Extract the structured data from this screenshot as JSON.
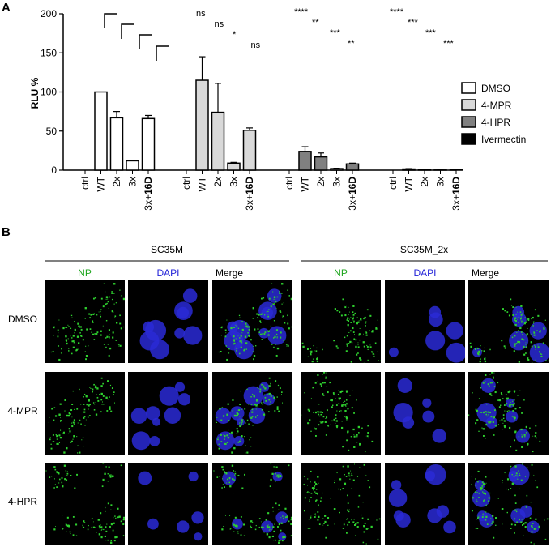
{
  "panel_a_letter": "A",
  "panel_b_letter": "B",
  "chart_data": {
    "type": "bar",
    "ylabel": "RLU %",
    "ylim": [
      0,
      200
    ],
    "yticks": [
      0,
      50,
      100,
      150,
      200
    ],
    "categories": [
      "ctrl",
      "WT",
      "2x",
      "3x",
      "3x+16D"
    ],
    "legend_position": "right",
    "series": [
      {
        "name": "DMSO",
        "color": "#ffffff",
        "values": [
          0,
          100,
          67,
          12,
          66
        ],
        "errors": [
          0,
          0,
          8,
          0,
          4
        ]
      },
      {
        "name": "4-MPR",
        "color": "#d9d9d9",
        "values": [
          0,
          115,
          74,
          9,
          51
        ],
        "errors": [
          0,
          30,
          37,
          1,
          3
        ]
      },
      {
        "name": "4-HPR",
        "color": "#808080",
        "values": [
          0,
          24,
          17,
          2,
          8
        ],
        "errors": [
          0,
          6,
          5,
          0.5,
          1
        ]
      },
      {
        "name": "Ivermectin",
        "color": "#000000",
        "values": [
          0,
          1.5,
          0.5,
          0.2,
          0.8
        ],
        "errors": [
          0,
          0.5,
          0.2,
          0.1,
          0.3
        ]
      }
    ],
    "significance": [
      [
        "",
        "",
        "",
        ""
      ],
      [
        "ns",
        "ns",
        "*",
        "ns"
      ],
      [
        "****",
        "**",
        "***",
        "**"
      ],
      [
        "****",
        "***",
        "***",
        "***"
      ]
    ]
  },
  "panel_b": {
    "groups": [
      "SC35M",
      "SC35M_2x"
    ],
    "channels": [
      {
        "label": "NP",
        "color": "#1fa61f"
      },
      {
        "label": "DAPI",
        "color": "#2323d8"
      },
      {
        "label": "Merge",
        "color": "#000000"
      }
    ],
    "rows": [
      "DMSO",
      "4-MPR",
      "4-HPR"
    ]
  }
}
